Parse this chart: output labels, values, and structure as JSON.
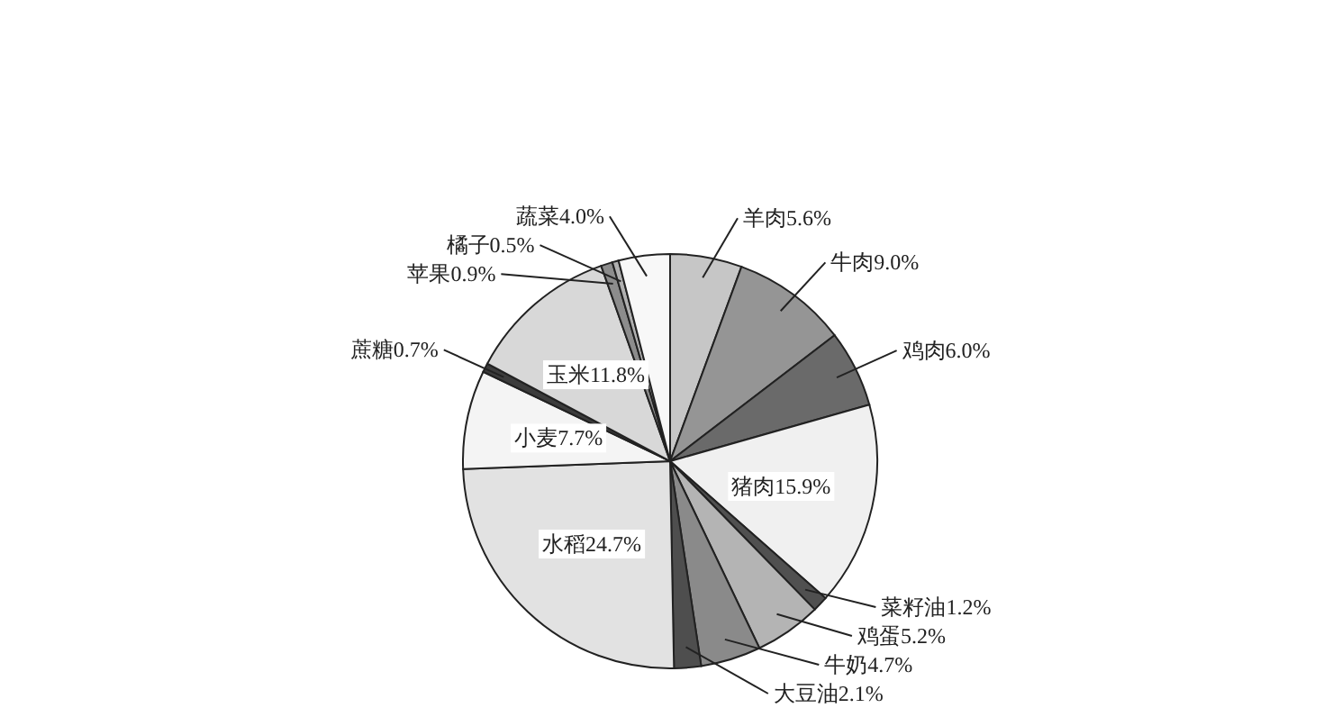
{
  "chart_data": {
    "type": "pie",
    "categories": [
      "羊肉",
      "牛肉",
      "鸡肉",
      "猪肉",
      "菜籽油",
      "鸡蛋",
      "牛奶",
      "大豆油",
      "水稻",
      "小麦",
      "蔗糖",
      "玉米",
      "苹果",
      "橘子",
      "蔬菜"
    ],
    "values": [
      5.6,
      9.0,
      6.0,
      15.9,
      1.2,
      5.2,
      4.7,
      2.1,
      24.7,
      7.7,
      0.7,
      11.8,
      0.9,
      0.5,
      4.0
    ],
    "colors": [
      "#c6c6c6",
      "#959595",
      "#6a6a6a",
      "#f0f0f0",
      "#505050",
      "#b4b4b4",
      "#8a8a8a",
      "#4e4e4e",
      "#e2e2e2",
      "#f4f4f4",
      "#3c3c3c",
      "#d8d8d8",
      "#8c8c8c",
      "#b0b0b0",
      "#f8f8f8"
    ],
    "value_labels": [
      "5.6%",
      "9.0%",
      "6.0%",
      "15.9%",
      "1.2%",
      "5.2%",
      "4.7%",
      "2.1%",
      "24.7%",
      "7.7%",
      "0.7%",
      "11.8%",
      "0.9%",
      "0.5%",
      "4.0%"
    ]
  }
}
